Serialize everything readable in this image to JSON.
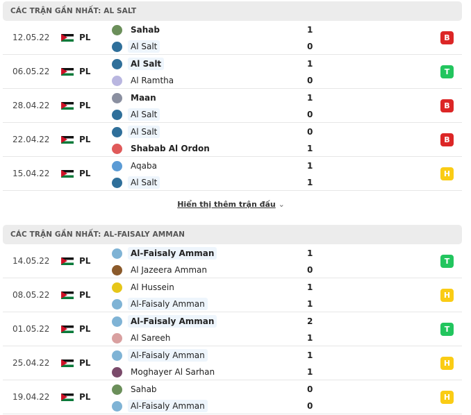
{
  "colors": {
    "win": "#22c55e",
    "draw": "#facc15",
    "loss": "#dc2626",
    "header_bg": "#ececec"
  },
  "sections": [
    {
      "title": "CÁC TRẬN GẦN NHẤT: AL SALT",
      "matches": [
        {
          "date": "12.05.22",
          "league": "PL",
          "home": "Sahab",
          "away": "Al Salt",
          "hs": "1",
          "as": "0",
          "focus": "away",
          "result": "B",
          "home_logo": "#6b8f5a",
          "away_logo": "#2f6f9a"
        },
        {
          "date": "06.05.22",
          "league": "PL",
          "home": "Al Salt",
          "away": "Al Ramtha",
          "hs": "1",
          "as": "0",
          "focus": "home",
          "result": "T",
          "home_logo": "#2f6f9a",
          "away_logo": "#b9b6e0"
        },
        {
          "date": "28.04.22",
          "league": "PL",
          "home": "Maan",
          "away": "Al Salt",
          "hs": "1",
          "as": "0",
          "focus": "away",
          "result": "B",
          "home_logo": "#8a8fa0",
          "away_logo": "#2f6f9a"
        },
        {
          "date": "22.04.22",
          "league": "PL",
          "home": "Al Salt",
          "away": "Shabab Al Ordon",
          "hs": "0",
          "as": "1",
          "focus": "home",
          "result": "B",
          "home_logo": "#2f6f9a",
          "away_logo": "#e05a5a"
        },
        {
          "date": "15.04.22",
          "league": "PL",
          "home": "Aqaba",
          "away": "Al Salt",
          "hs": "1",
          "as": "1",
          "focus": "away",
          "result": "H",
          "home_logo": "#5b9bd5",
          "away_logo": "#2f6f9a"
        }
      ],
      "more": "Hiển thị thêm trận đấu"
    },
    {
      "title": "CÁC TRẬN GẦN NHẤT: AL-FAISALY AMMAN",
      "matches": [
        {
          "date": "14.05.22",
          "league": "PL",
          "home": "Al-Faisaly Amman",
          "away": "Al Jazeera Amman",
          "hs": "1",
          "as": "0",
          "focus": "home",
          "result": "T",
          "home_logo": "#7fb3d5",
          "away_logo": "#8b5a2b"
        },
        {
          "date": "08.05.22",
          "league": "PL",
          "home": "Al Hussein",
          "away": "Al-Faisaly Amman",
          "hs": "1",
          "as": "1",
          "focus": "away",
          "result": "H",
          "home_logo": "#e6c619",
          "away_logo": "#7fb3d5"
        },
        {
          "date": "01.05.22",
          "league": "PL",
          "home": "Al-Faisaly Amman",
          "away": "Al Sareeh",
          "hs": "2",
          "as": "1",
          "focus": "home",
          "result": "T",
          "home_logo": "#7fb3d5",
          "away_logo": "#d9a0a0"
        },
        {
          "date": "25.04.22",
          "league": "PL",
          "home": "Al-Faisaly Amman",
          "away": "Moghayer Al Sarhan",
          "hs": "1",
          "as": "1",
          "focus": "home",
          "result": "H",
          "home_logo": "#7fb3d5",
          "away_logo": "#7a4a6a"
        },
        {
          "date": "19.04.22",
          "league": "PL",
          "home": "Sahab",
          "away": "Al-Faisaly Amman",
          "hs": "0",
          "as": "0",
          "focus": "away",
          "result": "H",
          "home_logo": "#6b8f5a",
          "away_logo": "#7fb3d5"
        }
      ]
    }
  ]
}
